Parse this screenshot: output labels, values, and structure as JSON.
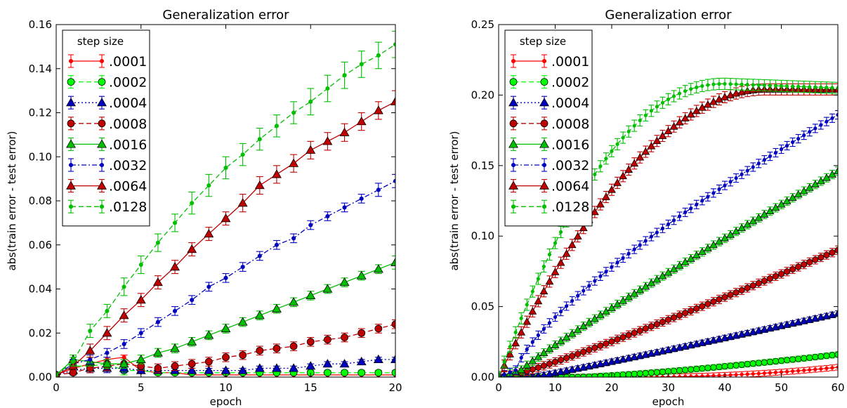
{
  "chart_data": [
    {
      "type": "line",
      "title": "Generalization error",
      "xlabel": "epoch",
      "ylabel": "abs(train error - test error)",
      "xlim": [
        0,
        20
      ],
      "ylim": [
        0,
        0.16
      ],
      "xticks": [
        0,
        5,
        10,
        15,
        20
      ],
      "yticks": [
        0.0,
        0.02,
        0.04,
        0.06,
        0.08,
        0.1,
        0.12,
        0.14,
        0.16
      ],
      "ytick_labels": [
        "0.00",
        "0.02",
        "0.04",
        "0.06",
        "0.08",
        "0.10",
        "0.12",
        "0.14",
        "0.16"
      ],
      "grid": false,
      "legend": {
        "title": "step size",
        "position": "top-left"
      },
      "x": [
        0,
        1,
        2,
        3,
        4,
        5,
        6,
        7,
        8,
        9,
        10,
        11,
        12,
        13,
        14,
        15,
        16,
        17,
        18,
        19,
        20
      ],
      "series": [
        {
          "name": ".0001",
          "color": "#ff0000",
          "marker": "dot",
          "dash": "solid",
          "values": [
            0.001,
            0.004,
            0.006,
            0.008,
            0.009,
            0.003,
            0.002,
            0.002,
            0.001,
            0.001,
            0.001,
            0.001,
            0.001,
            0.001,
            0.001,
            0.001,
            0.001,
            0.001,
            0.001,
            0.001,
            0.001
          ],
          "err": [
            0.001,
            0.001,
            0.001,
            0.001,
            0.001,
            0.001,
            0.001,
            0.001,
            0.001,
            0.001,
            0.001,
            0.001,
            0.001,
            0.001,
            0.001,
            0.001,
            0.001,
            0.001,
            0.001,
            0.001,
            0.001
          ]
        },
        {
          "name": ".0002",
          "color": "#00ff00",
          "marker": "circle",
          "dash": "dashed",
          "values": [
            0.001,
            0.005,
            0.005,
            0.006,
            0.003,
            0.003,
            0.002,
            0.002,
            0.002,
            0.002,
            0.002,
            0.002,
            0.002,
            0.002,
            0.002,
            0.002,
            0.002,
            0.002,
            0.002,
            0.002,
            0.002
          ],
          "err": [
            0.001,
            0.002,
            0.002,
            0.002,
            0.002,
            0.001,
            0.001,
            0.001,
            0.001,
            0.001,
            0.001,
            0.001,
            0.001,
            0.001,
            0.001,
            0.001,
            0.001,
            0.001,
            0.001,
            0.001,
            0.001
          ]
        },
        {
          "name": ".0004",
          "color": "#0000bf",
          "marker": "triangle",
          "dash": "dotted",
          "values": [
            0.001,
            0.003,
            0.004,
            0.004,
            0.004,
            0.003,
            0.003,
            0.003,
            0.003,
            0.003,
            0.003,
            0.003,
            0.004,
            0.004,
            0.004,
            0.005,
            0.006,
            0.006,
            0.007,
            0.008,
            0.008
          ],
          "err": [
            0.001,
            0.002,
            0.002,
            0.002,
            0.002,
            0.001,
            0.001,
            0.001,
            0.001,
            0.001,
            0.001,
            0.001,
            0.001,
            0.001,
            0.001,
            0.001,
            0.001,
            0.001,
            0.001,
            0.001,
            0.001
          ]
        },
        {
          "name": ".0008",
          "color": "#bf0000",
          "marker": "circle",
          "dash": "dashed",
          "values": [
            0.001,
            0.002,
            0.004,
            0.005,
            0.006,
            0.005,
            0.004,
            0.005,
            0.006,
            0.007,
            0.009,
            0.01,
            0.012,
            0.013,
            0.014,
            0.016,
            0.017,
            0.018,
            0.02,
            0.022,
            0.024
          ],
          "err": [
            0.001,
            0.002,
            0.002,
            0.002,
            0.002,
            0.002,
            0.002,
            0.002,
            0.002,
            0.002,
            0.002,
            0.002,
            0.002,
            0.002,
            0.002,
            0.002,
            0.002,
            0.002,
            0.002,
            0.002,
            0.002
          ]
        },
        {
          "name": ".0016",
          "color": "#00bf00",
          "marker": "triangle",
          "dash": "solid",
          "values": [
            0.001,
            0.008,
            0.007,
            0.006,
            0.006,
            0.008,
            0.011,
            0.013,
            0.016,
            0.019,
            0.022,
            0.025,
            0.028,
            0.031,
            0.034,
            0.037,
            0.04,
            0.043,
            0.046,
            0.049,
            0.052
          ],
          "err": [
            0.001,
            0.002,
            0.002,
            0.002,
            0.002,
            0.002,
            0.002,
            0.002,
            0.002,
            0.002,
            0.002,
            0.002,
            0.002,
            0.002,
            0.002,
            0.002,
            0.002,
            0.002,
            0.002,
            0.002,
            0.003
          ]
        },
        {
          "name": ".0032",
          "color": "#0000bf",
          "marker": "dot",
          "dash": "dashdot",
          "values": [
            0.001,
            0.006,
            0.008,
            0.011,
            0.015,
            0.02,
            0.025,
            0.03,
            0.035,
            0.041,
            0.045,
            0.05,
            0.055,
            0.06,
            0.063,
            0.069,
            0.073,
            0.077,
            0.081,
            0.085,
            0.089
          ],
          "err": [
            0.001,
            0.002,
            0.002,
            0.002,
            0.002,
            0.002,
            0.002,
            0.002,
            0.002,
            0.002,
            0.002,
            0.002,
            0.002,
            0.002,
            0.002,
            0.002,
            0.002,
            0.002,
            0.002,
            0.003,
            0.003
          ]
        },
        {
          "name": ".0064",
          "color": "#bf0000",
          "marker": "triangle",
          "dash": "solid",
          "values": [
            0.001,
            0.005,
            0.012,
            0.02,
            0.028,
            0.035,
            0.043,
            0.05,
            0.058,
            0.065,
            0.072,
            0.079,
            0.087,
            0.092,
            0.097,
            0.103,
            0.107,
            0.111,
            0.116,
            0.121,
            0.125
          ],
          "err": [
            0.001,
            0.002,
            0.003,
            0.003,
            0.003,
            0.003,
            0.003,
            0.003,
            0.003,
            0.003,
            0.003,
            0.004,
            0.004,
            0.004,
            0.004,
            0.004,
            0.004,
            0.004,
            0.004,
            0.004,
            0.005
          ]
        },
        {
          "name": ".0128",
          "color": "#00bf00",
          "marker": "dot",
          "dash": "dashed",
          "values": [
            0.001,
            0.007,
            0.021,
            0.03,
            0.041,
            0.051,
            0.061,
            0.07,
            0.079,
            0.087,
            0.095,
            0.101,
            0.108,
            0.114,
            0.12,
            0.125,
            0.131,
            0.137,
            0.142,
            0.146,
            0.151
          ],
          "err": [
            0.001,
            0.002,
            0.003,
            0.003,
            0.004,
            0.004,
            0.004,
            0.004,
            0.005,
            0.005,
            0.005,
            0.005,
            0.005,
            0.005,
            0.005,
            0.006,
            0.006,
            0.006,
            0.006,
            0.006,
            0.006
          ]
        }
      ]
    },
    {
      "type": "line",
      "title": "Generalization error",
      "xlabel": "epoch",
      "ylabel": "abs(train error - test error)",
      "xlim": [
        0,
        60
      ],
      "ylim": [
        0,
        0.25
      ],
      "xticks": [
        0,
        10,
        20,
        30,
        40,
        50,
        60
      ],
      "yticks": [
        0.0,
        0.05,
        0.1,
        0.15,
        0.2,
        0.25
      ],
      "ytick_labels": [
        "0.00",
        "0.05",
        "0.10",
        "0.15",
        "0.20",
        "0.25"
      ],
      "grid": false,
      "legend": {
        "title": "step size",
        "position": "top-left"
      },
      "x": [
        0,
        1,
        2,
        3,
        4,
        5,
        6,
        7,
        8,
        9,
        10,
        11,
        12,
        13,
        14,
        15,
        16,
        17,
        18,
        19,
        20,
        21,
        22,
        23,
        24,
        25,
        26,
        27,
        28,
        29,
        30,
        31,
        32,
        33,
        34,
        35,
        36,
        37,
        38,
        39,
        40,
        41,
        42,
        43,
        44,
        45,
        46,
        47,
        48,
        49,
        50,
        51,
        52,
        53,
        54,
        55,
        56,
        57,
        58,
        59,
        60
      ],
      "series": [
        {
          "name": ".0001",
          "color": "#ff0000",
          "marker": "dot",
          "dash": "solid",
          "y_start": 0.0,
          "y_knee": 0.0,
          "knee_x": 25,
          "y_end": 0.007,
          "curve": 2,
          "err": 0.002
        },
        {
          "name": ".0002",
          "color": "#00ff00",
          "marker": "circle",
          "dash": "dashed",
          "y_start": 0.0,
          "y_knee": 0.0,
          "knee_x": 14,
          "y_end": 0.016,
          "curve": 1.3,
          "err": 0.002
        },
        {
          "name": ".0004",
          "color": "#0000bf",
          "marker": "triangle",
          "dash": "dotted",
          "y_start": 0.0,
          "y_knee": 0.0,
          "knee_x": 6,
          "y_end": 0.045,
          "curve": 1.05,
          "err": 0.002
        },
        {
          "name": ".0008",
          "color": "#bf0000",
          "marker": "circle",
          "dash": "dashed",
          "y_start": 0.0,
          "y_knee": 0.002,
          "knee_x": 3,
          "y_end": 0.09,
          "curve": 1.1,
          "err": 0.003
        },
        {
          "name": ".0016",
          "color": "#00bf00",
          "marker": "triangle",
          "dash": "solid",
          "y_start": 0.0,
          "y_knee": 0.005,
          "knee_x": 4,
          "y_end": 0.146,
          "curve": 0.93,
          "err": 0.003
        },
        {
          "name": ".0032",
          "color": "#0000bf",
          "marker": "dot",
          "dash": "dashdot",
          "y_start": 0.0,
          "y_knee": 0.005,
          "knee_x": 3,
          "y_end": 0.186,
          "curve": 0.75,
          "err": 0.003
        },
        {
          "name": ".0064",
          "color": "#bf0000",
          "marker": "triangle",
          "dash": "solid",
          "y_start": 0.0,
          "y_knee": 0.0,
          "knee_x": 0,
          "y_end": 0.204,
          "curve": 0.55,
          "sat_x": 47,
          "err": 0.004
        },
        {
          "name": ".0128",
          "color": "#00bf00",
          "marker": "dot",
          "dash": "dashed",
          "y_start": 0.0,
          "y_knee": 0.0,
          "knee_x": 0,
          "y_end": 0.208,
          "curve": 0.45,
          "sat_x": 40,
          "final": 0.205,
          "err": 0.004
        }
      ]
    }
  ]
}
